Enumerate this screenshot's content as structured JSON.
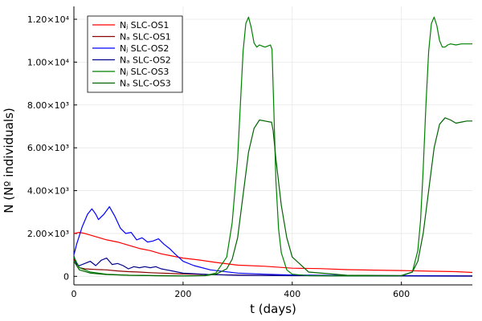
{
  "chart_data": {
    "type": "line",
    "xlabel": "t (days)",
    "ylabel": "N (Nº individuals)",
    "xlim": [
      0,
      730
    ],
    "ylim": [
      -400,
      12600
    ],
    "xticks": [
      0,
      200,
      400,
      600
    ],
    "xtick_labels": [
      "0",
      "200",
      "400",
      "600"
    ],
    "yticks": [
      0,
      2000,
      4000,
      6000,
      8000,
      10000,
      12000
    ],
    "ytick_labels": [
      "0",
      "2.00×10³",
      "4.00×10³",
      "6.00×10³",
      "8.00×10³",
      "1.00×10⁴",
      "1.20×10⁴"
    ],
    "grid": true,
    "legend_position": "top-left",
    "series": [
      {
        "name": "Nⱼ SLC-OS1",
        "color": "#ff0000",
        "x": [
          0,
          10,
          20,
          40,
          60,
          80,
          100,
          120,
          140,
          160,
          180,
          200,
          230,
          260,
          300,
          350,
          400,
          450,
          500,
          550,
          600,
          650,
          700,
          730
        ],
        "y": [
          2000,
          2050,
          2000,
          1850,
          1700,
          1600,
          1450,
          1300,
          1200,
          1050,
          950,
          850,
          760,
          650,
          520,
          470,
          380,
          360,
          310,
          290,
          270,
          240,
          220,
          180
        ]
      },
      {
        "name": "Nₐ SLC-OS1",
        "color": "#8b0000",
        "x": [
          0,
          10,
          20,
          40,
          60,
          80,
          100,
          120,
          140,
          160,
          180,
          200,
          250,
          300,
          400,
          500,
          600,
          730
        ],
        "y": [
          800,
          400,
          350,
          320,
          300,
          250,
          220,
          200,
          170,
          150,
          130,
          110,
          80,
          60,
          40,
          30,
          25,
          20
        ]
      },
      {
        "name": "Nⱼ SLC-OS2",
        "color": "#0000ff",
        "x": [
          0,
          5,
          15,
          25,
          33,
          40,
          45,
          55,
          65,
          75,
          85,
          95,
          105,
          115,
          125,
          135,
          145,
          155,
          165,
          175,
          185,
          200,
          220,
          250,
          300,
          350,
          400,
          500,
          600,
          730
        ],
        "y": [
          1000,
          1500,
          2300,
          2900,
          3150,
          2900,
          2650,
          2900,
          3250,
          2800,
          2250,
          2000,
          2050,
          1700,
          1800,
          1600,
          1650,
          1750,
          1500,
          1300,
          1050,
          700,
          500,
          300,
          150,
          100,
          60,
          40,
          30,
          20
        ]
      },
      {
        "name": "Nₐ SLC-OS2",
        "color": "#00008b",
        "x": [
          0,
          5,
          10,
          20,
          30,
          40,
          50,
          60,
          70,
          80,
          90,
          100,
          110,
          120,
          130,
          140,
          150,
          160,
          170,
          180,
          200,
          250,
          300,
          400,
          500,
          600,
          730
        ],
        "y": [
          950,
          550,
          500,
          600,
          700,
          500,
          750,
          850,
          550,
          600,
          500,
          350,
          450,
          400,
          450,
          400,
          450,
          350,
          300,
          250,
          150,
          80,
          50,
          30,
          20,
          15,
          10
        ]
      },
      {
        "name": "Nⱼ SLC-OS3",
        "color": "#008000",
        "x": [
          0,
          10,
          30,
          60,
          100,
          150,
          200,
          240,
          260,
          280,
          290,
          300,
          305,
          310,
          315,
          320,
          325,
          330,
          335,
          340,
          345,
          350,
          355,
          360,
          363,
          366,
          370,
          375,
          380,
          390,
          400,
          430,
          500,
          600,
          620,
          630,
          635,
          640,
          645,
          650,
          655,
          660,
          665,
          670,
          675,
          680,
          685,
          690,
          700,
          710,
          720,
          730
        ],
        "y": [
          900,
          400,
          200,
          100,
          50,
          30,
          20,
          40,
          150,
          900,
          2500,
          5500,
          8000,
          10500,
          11800,
          12100,
          11600,
          10900,
          10700,
          10800,
          10750,
          10700,
          10750,
          10800,
          10600,
          8000,
          4500,
          2200,
          1100,
          300,
          100,
          30,
          20,
          30,
          200,
          1200,
          2600,
          5000,
          8000,
          10500,
          11800,
          12100,
          11700,
          11000,
          10700,
          10700,
          10800,
          10850,
          10800,
          10850,
          10850,
          10850
        ]
      },
      {
        "name": "Nₐ SLC-OS3",
        "color": "#006400",
        "x": [
          0,
          10,
          30,
          60,
          100,
          150,
          200,
          240,
          260,
          280,
          290,
          300,
          310,
          320,
          330,
          340,
          350,
          360,
          362,
          365,
          370,
          380,
          390,
          400,
          430,
          500,
          600,
          620,
          630,
          640,
          650,
          660,
          670,
          680,
          690,
          700,
          710,
          720,
          730
        ],
        "y": [
          700,
          300,
          150,
          80,
          50,
          30,
          20,
          30,
          100,
          350,
          800,
          1800,
          3800,
          5800,
          6900,
          7300,
          7250,
          7200,
          7200,
          6800,
          5500,
          3300,
          1800,
          900,
          200,
          50,
          30,
          200,
          700,
          2000,
          4000,
          6000,
          7100,
          7400,
          7300,
          7150,
          7200,
          7250,
          7250
        ]
      }
    ]
  }
}
